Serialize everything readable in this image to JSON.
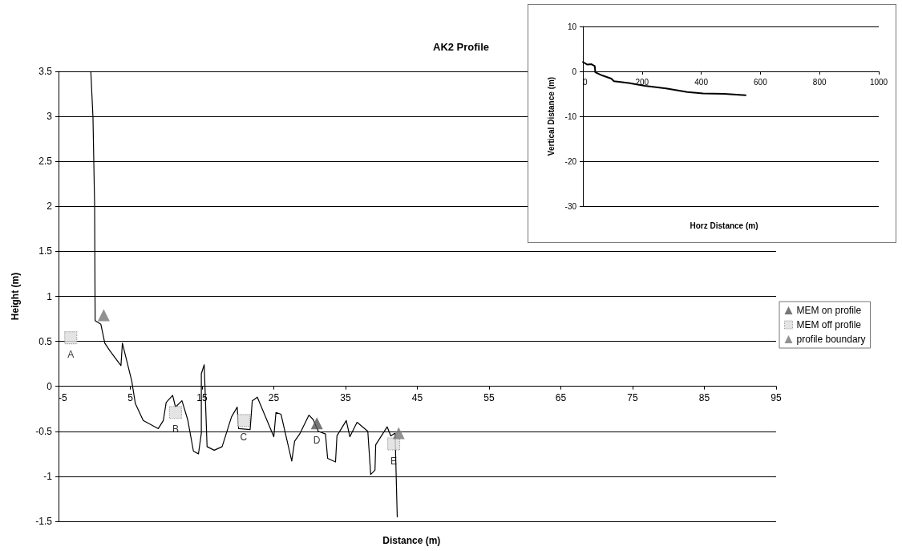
{
  "chart_data": [
    {
      "type": "line",
      "title": "AK2 Profile",
      "xlabel": "Distance (m)",
      "ylabel": "Height (m)",
      "xlim": [
        -5,
        95
      ],
      "xticks": [
        -5,
        5,
        15,
        25,
        35,
        45,
        55,
        65,
        75,
        85,
        95
      ],
      "ylim": [
        -1.5,
        3.5
      ],
      "yticks": [
        -1.5,
        -1,
        -0.5,
        0,
        0.5,
        1,
        1.5,
        2,
        2.5,
        3,
        3.5
      ],
      "grid": "y",
      "legend": "right",
      "series": [
        {
          "color": "#000000",
          "marker": "none",
          "x": [
            -0.5,
            -0.2,
            0.03,
            0.1,
            0.9,
            1.45,
            2.2,
            3.7,
            3.9,
            5.2,
            5.7,
            6.8,
            8.9,
            9.6,
            10.0,
            10.9,
            11.3,
            12.2,
            13.0,
            13.8,
            14.5,
            14.9,
            14.9,
            15.3,
            15.7,
            16.7,
            17.8,
            19.1,
            19.9,
            20.1,
            21.7,
            22.0,
            22.7,
            25.0,
            25.3,
            26.0,
            27.5,
            27.9,
            28.6,
            29.9,
            30.5,
            31.2,
            32.2,
            32.5,
            33.6,
            33.8,
            35.1,
            35.6,
            36.6,
            38.1,
            38.5,
            39.1,
            39.2,
            40.8,
            41.3,
            41.9,
            42.2
          ],
          "values": [
            3.5,
            2.99,
            2.0,
            0.73,
            0.69,
            0.48,
            0.39,
            0.23,
            0.48,
            0.06,
            -0.19,
            -0.38,
            -0.47,
            -0.38,
            -0.18,
            -0.1,
            -0.23,
            -0.16,
            -0.37,
            -0.72,
            -0.75,
            -0.52,
            0.14,
            0.24,
            -0.67,
            -0.71,
            -0.67,
            -0.34,
            -0.23,
            -0.47,
            -0.48,
            -0.16,
            -0.12,
            -0.56,
            -0.29,
            -0.31,
            -0.83,
            -0.61,
            -0.53,
            -0.32,
            -0.37,
            -0.5,
            -0.53,
            -0.8,
            -0.84,
            -0.55,
            -0.38,
            -0.56,
            -0.4,
            -0.5,
            -0.98,
            -0.93,
            -0.65,
            -0.45,
            -0.55,
            -0.52,
            -1.45
          ]
        },
        {
          "name": "MEM on profile",
          "type": "scatter",
          "marker": "triangle",
          "color": "#555555",
          "x": [
            31.0
          ],
          "values": [
            -0.41
          ]
        },
        {
          "name": "MEM off profile",
          "type": "scatter",
          "marker": "square",
          "color": "#dddddd",
          "x": [
            -3.3,
            11.3,
            20.8,
            41.7
          ],
          "values": [
            0.54,
            -0.29,
            -0.38,
            -0.64
          ]
        },
        {
          "name": "profile boundary",
          "type": "scatter",
          "marker": "triangle",
          "color": "#777777",
          "x": [
            1.3,
            42.4
          ],
          "values": [
            0.79,
            -0.52
          ]
        }
      ],
      "annotations": [
        {
          "text": "A",
          "x": -3.3,
          "y": 0.54
        },
        {
          "text": "B",
          "x": 11.3,
          "y": -0.29
        },
        {
          "text": "C",
          "x": 20.8,
          "y": -0.38
        },
        {
          "text": "D",
          "x": 31.0,
          "y": -0.41
        },
        {
          "text": "E",
          "x": 41.7,
          "y": -0.64
        }
      ]
    },
    {
      "type": "line",
      "xlabel": "Horz Distance (m)",
      "ylabel": "Vertical Distance (m)",
      "xlim": [
        0,
        1000
      ],
      "xticks": [
        0,
        200,
        400,
        600,
        800,
        1000
      ],
      "ylim": [
        -30,
        10
      ],
      "yticks": [
        -30,
        -20,
        -10,
        0,
        10
      ],
      "grid": "y",
      "series": [
        {
          "color": "#000000",
          "marker": "none",
          "x": [
            0,
            15,
            29,
            40,
            42,
            65,
            96,
            105,
            155,
            209,
            281,
            353,
            406,
            478,
            550
          ],
          "values": [
            2.1,
            1.5,
            1.6,
            1.2,
            -0.2,
            -0.9,
            -1.6,
            -2.2,
            -2.6,
            -3.2,
            -3.8,
            -4.6,
            -4.9,
            -5.0,
            -5.3
          ]
        }
      ]
    }
  ]
}
